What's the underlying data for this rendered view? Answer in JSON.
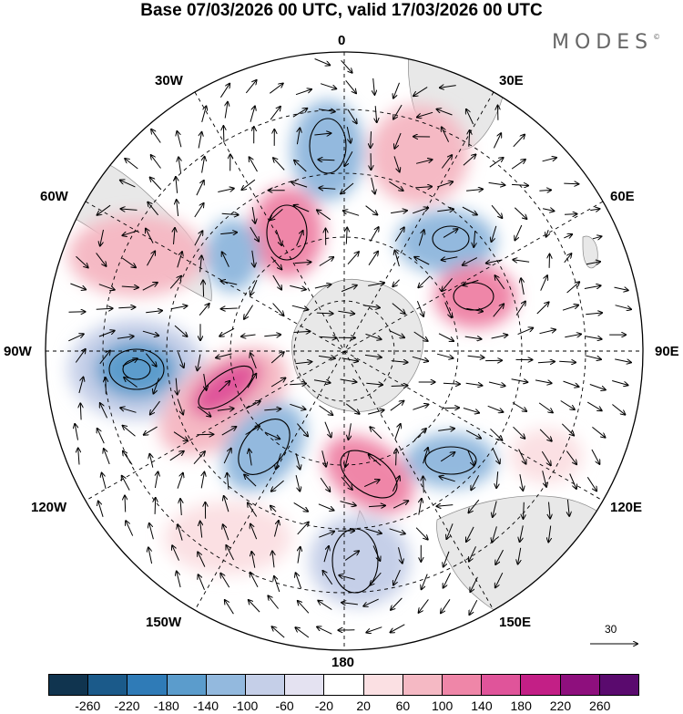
{
  "title": "Base 07/03/2026 00 UTC, valid 17/03/2026 00 UTC",
  "logo": "MODES",
  "logo_mark": "©",
  "longitude_labels": {
    "top": "0",
    "bottom": "180",
    "left": "90W",
    "right": "90E",
    "upper_left": "30W",
    "upper_right": "30E",
    "mid_left": "60W",
    "mid_right": "60E",
    "lower_left": "120W",
    "lower_right": "120E",
    "bottom_left": "150W",
    "bottom_right": "150E"
  },
  "reference_vector": "30",
  "colorbar": {
    "colors": [
      "#10344f",
      "#1b5a8a",
      "#2f7bb7",
      "#5b9ccc",
      "#93b9de",
      "#c5cfe8",
      "#e4e2f1",
      "#ffffff",
      "#fbe0e3",
      "#f5b9c4",
      "#ef86a8",
      "#e0549a",
      "#c31f86",
      "#8e0f7d",
      "#5a0a6e"
    ],
    "ticks": [
      "-260",
      "-220",
      "-180",
      "-140",
      "-100",
      "-60",
      "-20",
      "20",
      "60",
      "100",
      "140",
      "180",
      "220",
      "260"
    ]
  },
  "anomaly_centers": [
    {
      "name": "negative",
      "lon": "95W",
      "lat": "-48",
      "value": "-180"
    },
    {
      "name": "positive",
      "lon": "110W",
      "lat": "-55",
      "value": "180"
    },
    {
      "name": "negative",
      "lon": "150W",
      "lat": "-55",
      "value": "-140"
    },
    {
      "name": "positive",
      "lon": "165E",
      "lat": "-55",
      "value": "140"
    },
    {
      "name": "negative",
      "lon": "175E",
      "lat": "-35",
      "value": "-100"
    },
    {
      "name": "positive",
      "lon": "40W",
      "lat": "-50",
      "value": "140"
    },
    {
      "name": "negative",
      "lon": "5W",
      "lat": "-40",
      "value": "-140"
    },
    {
      "name": "positive",
      "lon": "25E",
      "lat": "-40",
      "value": "100"
    },
    {
      "name": "negative",
      "lon": "45E",
      "lat": "-55",
      "value": "-140"
    },
    {
      "name": "positive",
      "lon": "75E",
      "lat": "-55",
      "value": "140"
    },
    {
      "name": "negative",
      "lon": "120E",
      "lat": "-50",
      "value": "-100"
    },
    {
      "name": "positive",
      "lon": "65W",
      "lat": "-35",
      "value": "60"
    }
  ]
}
